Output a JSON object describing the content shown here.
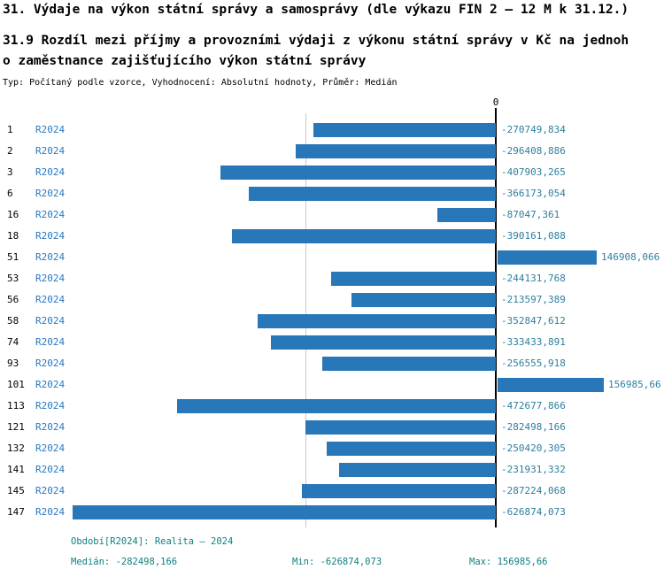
{
  "header": {
    "title": "31. Výdaje na výkon státní správy a samosprávy (dle výkazu FIN 2 – 12 M k 31.12.)",
    "subtitle_line1": "31.9 Rozdíl mezi příjmy a provozními výdaji z výkonu státní správy v Kč na jednoh",
    "subtitle_line2": "o zaměstnance zajišťujícího výkon státní správy",
    "meta": "Typ: Počítaný podle vzorce, Vyhodnocení: Absolutní hodnoty, Průměr: Medián"
  },
  "axis": {
    "zero_label": "0"
  },
  "chart_data": {
    "type": "bar",
    "orientation": "horizontal",
    "title": "31.9 Rozdíl mezi příjmy a provozními výdaji z výkonu státní správy v Kč na jednoho zaměstnance zajišťujícího výkon státní správy",
    "series_label": "R2024",
    "categories": [
      "1",
      "2",
      "3",
      "6",
      "16",
      "18",
      "51",
      "53",
      "56",
      "58",
      "74",
      "93",
      "101",
      "113",
      "121",
      "132",
      "141",
      "145",
      "147"
    ],
    "values": [
      -270749.834,
      -296408.886,
      -407903.265,
      -366173.054,
      -87047.361,
      -390161.088,
      146908.066,
      -244131.768,
      -213597.389,
      -352847.612,
      -333433.891,
      -256555.918,
      156985.66,
      -472677.866,
      -282498.166,
      -250420.305,
      -231931.332,
      -287224.068,
      -626874.073
    ],
    "value_labels": [
      "-270749,834",
      "-296408,886",
      "-407903,265",
      "-366173,054",
      "-87047,361",
      "-390161,088",
      "146908,066",
      "-244131,768",
      "-213597,389",
      "-352847,612",
      "-333433,891",
      "-256555,918",
      "156985,66",
      "-472677,866",
      "-282498,166",
      "-250420,305",
      "-231931,332",
      "-287224,068",
      "-626874,073"
    ],
    "xlim": [
      -626874.073,
      156985.66
    ],
    "median_line": -282498.166,
    "legend_position": "none",
    "grid": "median-only"
  },
  "footer": {
    "period": "Období[R2024]: Realita – 2024",
    "median": "Medián: -282498,166",
    "min": "Min: -626874,073",
    "max": "Max: 156985,66"
  },
  "colors": {
    "bar": "#2878b9",
    "series_label": "#2878c0",
    "value_label": "#2d7f9e",
    "footer_text": "#0f8080",
    "zero_line": "#000000",
    "median_gridline": "#c8c8c8"
  }
}
